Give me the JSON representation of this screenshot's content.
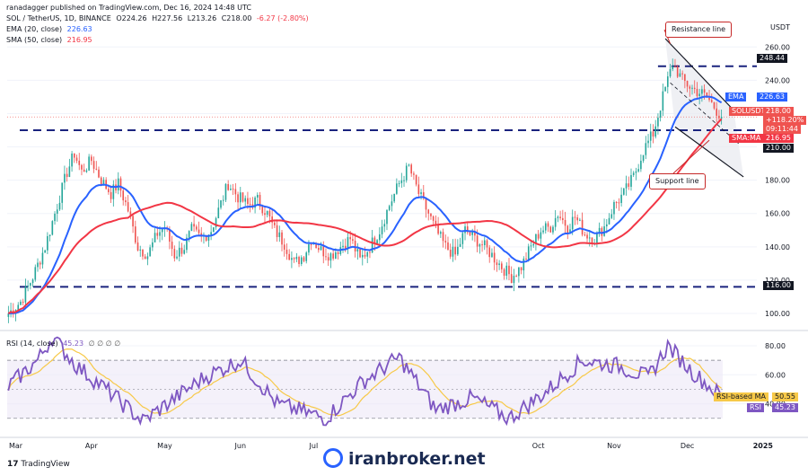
{
  "attribution": "ranadagger published on TradingView.com, Dec 16, 2024 14:48 UTC",
  "symbol_line": {
    "name": "SOL / TetherUS, 1D, BINANCE",
    "o": "O224.26",
    "h": "H227.56",
    "l": "L213.26",
    "c": "C218.00",
    "chg": "-6.27 (-2.80%)"
  },
  "ema_line": {
    "label": "EMA (20, close)",
    "value": "226.63"
  },
  "sma_line": {
    "label": "SMA (50, close)",
    "value": "216.95"
  },
  "rsi_line": {
    "label": "RSI (14, close)",
    "v1": "45.23",
    "rest": "∅ ∅ ∅ ∅"
  },
  "currency": "USDT",
  "tags": {
    "resistance_level": "248.44",
    "ema_tag_label": "EMA",
    "ema_tag_value": "226.63",
    "price_symbol": "SOLUSDT",
    "price_value": "218.00",
    "price_change": "+118.20%",
    "price_timer": "09:11:44",
    "sma_tag_label": "SMA:MA",
    "sma_tag_value": "216.95",
    "support_level_1": "210.00",
    "support_level_2": "116.00",
    "rsi_ma_label": "RSI-based MA",
    "rsi_ma_value": "50.55",
    "rsi_label": "RSI",
    "rsi_value": "45.23"
  },
  "annotations": {
    "resistance": "Resistance line",
    "support": "Support line"
  },
  "watermark": "iranbroker.net",
  "tradingview": "TradingView",
  "colors": {
    "up": "#26a69a",
    "down": "#ef5350",
    "ema": "#2962ff",
    "sma": "#f23645",
    "hline": "#1a237e",
    "rsi": "#7e57c2",
    "rsi_ma": "#f7c948",
    "channel": "#131722"
  },
  "chart_data": {
    "type": "candlestick",
    "date_range": [
      "2024-02-27",
      "2024-12-16"
    ],
    "price_axis": {
      "ticks": [
        100,
        120,
        140,
        160,
        180,
        200,
        220,
        240,
        260
      ],
      "ylim": [
        93,
        272
      ]
    },
    "time_axis": {
      "ticks": [
        "Mar",
        "Apr",
        "May",
        "Jun",
        "Jul",
        "Oct",
        "Nov",
        "Dec",
        "2025"
      ]
    },
    "horizontal_levels": [
      248.44,
      210.0,
      116.0
    ],
    "close_path_points": [
      [
        0,
        100
      ],
      [
        5,
        107
      ],
      [
        10,
        122
      ],
      [
        15,
        140
      ],
      [
        20,
        165
      ],
      [
        24,
        185
      ],
      [
        27,
        196
      ],
      [
        30,
        185
      ],
      [
        34,
        192
      ],
      [
        38,
        180
      ],
      [
        42,
        172
      ],
      [
        45,
        178
      ],
      [
        49,
        162
      ],
      [
        53,
        140
      ],
      [
        57,
        135
      ],
      [
        61,
        148
      ],
      [
        64,
        152
      ],
      [
        68,
        135
      ],
      [
        72,
        140
      ],
      [
        75,
        150
      ],
      [
        79,
        145
      ],
      [
        83,
        150
      ],
      [
        86,
        162
      ],
      [
        90,
        178
      ],
      [
        94,
        170
      ],
      [
        98,
        165
      ],
      [
        102,
        168
      ],
      [
        106,
        160
      ],
      [
        109,
        150
      ],
      [
        113,
        142
      ],
      [
        117,
        130
      ],
      [
        121,
        135
      ],
      [
        124,
        145
      ],
      [
        128,
        138
      ],
      [
        132,
        135
      ],
      [
        136,
        140
      ],
      [
        140,
        145
      ],
      [
        144,
        132
      ],
      [
        148,
        140
      ],
      [
        152,
        150
      ],
      [
        156,
        165
      ],
      [
        160,
        178
      ],
      [
        164,
        188
      ],
      [
        168,
        172
      ],
      [
        172,
        160
      ],
      [
        175,
        150
      ],
      [
        179,
        140
      ],
      [
        183,
        135
      ],
      [
        187,
        150
      ],
      [
        191,
        145
      ],
      [
        195,
        140
      ],
      [
        198,
        135
      ],
      [
        202,
        128
      ],
      [
        206,
        122
      ],
      [
        210,
        128
      ],
      [
        214,
        140
      ],
      [
        218,
        150
      ],
      [
        222,
        152
      ],
      [
        225,
        160
      ],
      [
        229,
        152
      ],
      [
        232,
        158
      ],
      [
        236,
        148
      ],
      [
        240,
        145
      ],
      [
        244,
        152
      ],
      [
        248,
        165
      ],
      [
        252,
        172
      ],
      [
        256,
        182
      ],
      [
        260,
        198
      ],
      [
        264,
        208
      ],
      [
        268,
        230
      ],
      [
        272,
        250
      ],
      [
        276,
        240
      ],
      [
        280,
        235
      ],
      [
        284,
        232
      ],
      [
        287,
        228
      ],
      [
        290,
        222
      ],
      [
        292,
        218
      ]
    ],
    "ema20_value_last": 226.63,
    "sma50_value_last": 216.95,
    "resistance_line": {
      "from": [
        "2024-11-22",
        265
      ],
      "to": [
        "2024-12-20",
        222
      ]
    },
    "support_line": {
      "from": [
        "2024-11-26",
        212
      ],
      "to": [
        "2024-12-24",
        182
      ]
    },
    "rsi": {
      "ylim": [
        20,
        88
      ],
      "ticks": [
        40,
        60,
        80
      ],
      "band": [
        30,
        70
      ],
      "last": 45.23,
      "ma_last": 50.55,
      "key_points": [
        [
          0,
          52
        ],
        [
          12,
          70
        ],
        [
          18,
          86
        ],
        [
          28,
          66
        ],
        [
          40,
          50
        ],
        [
          55,
          28
        ],
        [
          65,
          40
        ],
        [
          80,
          58
        ],
        [
          95,
          70
        ],
        [
          110,
          40
        ],
        [
          130,
          30
        ],
        [
          145,
          55
        ],
        [
          160,
          72
        ],
        [
          175,
          36
        ],
        [
          190,
          44
        ],
        [
          205,
          30
        ],
        [
          220,
          48
        ],
        [
          235,
          70
        ],
        [
          250,
          66
        ],
        [
          262,
          58
        ],
        [
          270,
          80
        ],
        [
          280,
          62
        ],
        [
          292,
          45
        ]
      ]
    }
  }
}
